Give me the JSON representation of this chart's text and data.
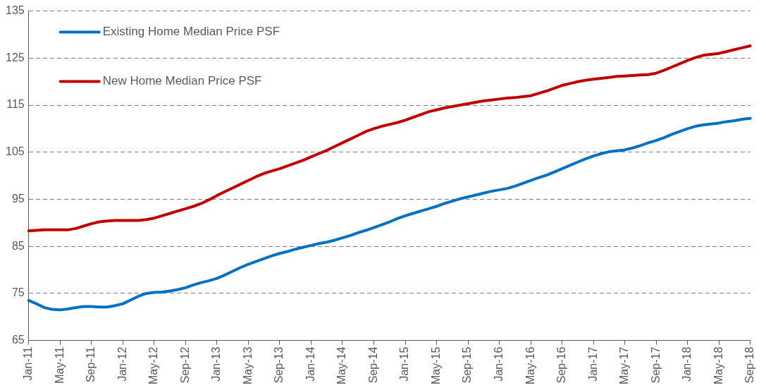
{
  "chart_data": {
    "type": "line",
    "categories": [
      "Jan-11",
      null,
      null,
      null,
      "May-11",
      null,
      null,
      null,
      "Sep-11",
      null,
      null,
      null,
      "Jan-12",
      null,
      null,
      null,
      "May-12",
      null,
      null,
      null,
      "Sep-12",
      null,
      null,
      null,
      "Jan-13",
      null,
      null,
      null,
      "May-13",
      null,
      null,
      null,
      "Sep-13",
      null,
      null,
      null,
      "Jan-14",
      null,
      null,
      null,
      "May-14",
      null,
      null,
      null,
      "Sep-14",
      null,
      null,
      null,
      "Jan-15",
      null,
      null,
      null,
      "May-15",
      null,
      null,
      null,
      "Sep-15",
      null,
      null,
      null,
      "Jan-16",
      null,
      null,
      null,
      "May-16",
      null,
      null,
      null,
      "Sep-16",
      null,
      null,
      null,
      "Jan-17",
      null,
      null,
      null,
      "May-17",
      null,
      null,
      null,
      "Sep-17",
      null,
      null,
      null,
      "Jan-18",
      null,
      null,
      null,
      "May-18",
      null,
      null,
      null,
      "Sep-18"
    ],
    "series": [
      {
        "name": "Existing Home Median Price PSF",
        "color": "#0070c0",
        "values": [
          73.5,
          72.8,
          72.0,
          71.6,
          71.5,
          71.7,
          72.0,
          72.2,
          72.2,
          72.1,
          72.1,
          72.4,
          72.8,
          73.6,
          74.4,
          75.0,
          75.2,
          75.3,
          75.5,
          75.8,
          76.2,
          76.8,
          77.3,
          77.7,
          78.2,
          78.9,
          79.7,
          80.5,
          81.2,
          81.8,
          82.4,
          83.0,
          83.5,
          83.9,
          84.4,
          84.8,
          85.2,
          85.6,
          85.9,
          86.3,
          86.8,
          87.3,
          87.9,
          88.4,
          89.0,
          89.6,
          90.2,
          90.9,
          91.5,
          92.0,
          92.5,
          93.0,
          93.5,
          94.1,
          94.6,
          95.1,
          95.5,
          95.9,
          96.3,
          96.7,
          97.0,
          97.3,
          97.8,
          98.4,
          99.0,
          99.6,
          100.1,
          100.8,
          101.5,
          102.2,
          102.9,
          103.6,
          104.2,
          104.7,
          105.1,
          105.3,
          105.5,
          105.9,
          106.4,
          107.0,
          107.5,
          108.1,
          108.8,
          109.4,
          110.0,
          110.5,
          110.8,
          111.0,
          111.2,
          111.5,
          111.7,
          112.0,
          112.2
        ]
      },
      {
        "name": "New Home Median Price PSF",
        "color": "#c00000",
        "values": [
          88.3,
          88.4,
          88.5,
          88.5,
          88.5,
          88.5,
          88.8,
          89.3,
          89.8,
          90.2,
          90.4,
          90.5,
          90.5,
          90.5,
          90.5,
          90.7,
          91.0,
          91.5,
          92.0,
          92.5,
          93.0,
          93.5,
          94.1,
          94.9,
          95.8,
          96.6,
          97.4,
          98.2,
          99.0,
          99.8,
          100.5,
          101.0,
          101.5,
          102.1,
          102.7,
          103.3,
          104.0,
          104.7,
          105.4,
          106.2,
          107.0,
          107.8,
          108.6,
          109.4,
          110.0,
          110.5,
          110.9,
          111.3,
          111.8,
          112.4,
          113.0,
          113.6,
          114.0,
          114.4,
          114.7,
          115.0,
          115.3,
          115.6,
          115.9,
          116.1,
          116.3,
          116.5,
          116.6,
          116.8,
          117.0,
          117.5,
          118.0,
          118.6,
          119.2,
          119.6,
          120.0,
          120.3,
          120.5,
          120.7,
          120.9,
          121.1,
          121.2,
          121.3,
          121.4,
          121.5,
          121.8,
          122.4,
          123.1,
          123.8,
          124.5,
          125.1,
          125.6,
          125.8,
          126.0,
          126.4,
          126.8,
          127.2,
          127.6
        ]
      }
    ],
    "ylim": [
      65,
      135
    ],
    "yticks": [
      65,
      75,
      85,
      95,
      105,
      115,
      125,
      135
    ],
    "grid": "y",
    "legend": "top left",
    "marker": "none",
    "line_style": "solid"
  }
}
